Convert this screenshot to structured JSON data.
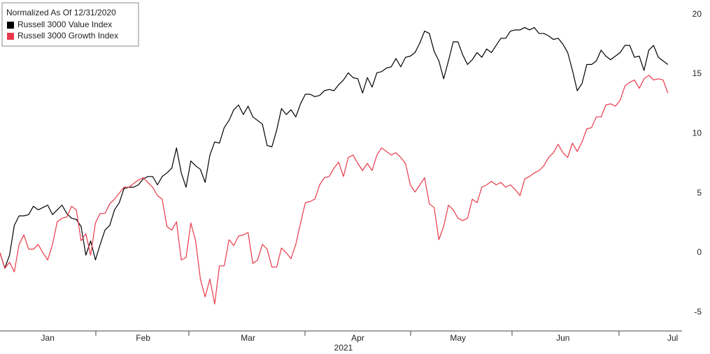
{
  "chart_data": {
    "type": "line",
    "legend_title": "Normalized As Of 12/31/2020",
    "x_label": "2021",
    "categories": [
      null,
      null,
      null,
      null,
      null,
      null,
      null,
      null,
      null,
      null,
      "Jan",
      null,
      null,
      null,
      null,
      null,
      null,
      null,
      null,
      null,
      null,
      null,
      null,
      null,
      null,
      null,
      null,
      null,
      null,
      null,
      "Feb",
      null,
      null,
      null,
      null,
      null,
      null,
      null,
      null,
      null,
      null,
      null,
      null,
      null,
      null,
      null,
      null,
      null,
      null,
      null,
      null,
      null,
      "Mar",
      null,
      null,
      null,
      null,
      null,
      null,
      null,
      null,
      null,
      null,
      null,
      null,
      null,
      null,
      null,
      null,
      null,
      null,
      null,
      null,
      null,
      null,
      "Apr",
      null,
      null,
      null,
      null,
      null,
      null,
      null,
      null,
      null,
      null,
      null,
      null,
      null,
      null,
      null,
      null,
      null,
      null,
      null,
      null,
      "May",
      null,
      null,
      null,
      null,
      null,
      null,
      null,
      null,
      null,
      null,
      null,
      null,
      null,
      null,
      null,
      null,
      null,
      null,
      null,
      null,
      null,
      "Jun",
      null,
      null,
      null,
      null,
      null,
      null,
      null,
      null,
      null,
      null,
      null,
      null,
      null,
      null,
      null,
      null,
      null,
      null,
      null,
      null,
      null,
      null,
      "Jul"
    ],
    "series": [
      {
        "name": "Russell 3000 Value Index",
        "color": "#000000",
        "values": [
          0,
          -1.3,
          -0.2,
          2.3,
          3.1,
          3.1,
          3.2,
          3.9,
          3.6,
          3.8,
          4.0,
          3.2,
          3.6,
          4.0,
          3.3,
          2.9,
          2.8,
          2.2,
          -0.2,
          1.0,
          -0.6,
          0.7,
          1.9,
          2.3,
          3.6,
          4.2,
          5.4,
          5.5,
          5.5,
          5.7,
          6.2,
          6.4,
          6.4,
          5.7,
          6.4,
          6.7,
          7.1,
          8.8,
          6.7,
          5.5,
          7.7,
          7.3,
          7.0,
          5.9,
          8.2,
          9.3,
          9.2,
          10.5,
          11.1,
          12.0,
          12.4,
          11.6,
          12.3,
          11.4,
          11.1,
          10.8,
          9.0,
          8.9,
          10.3,
          12.1,
          11.6,
          12.0,
          11.4,
          12.5,
          13.3,
          13.3,
          13.1,
          13.2,
          13.6,
          13.7,
          13.6,
          14.1,
          14.5,
          15.1,
          14.7,
          14.6,
          13.4,
          14.7,
          13.9,
          15.1,
          15.2,
          15.5,
          15.6,
          16.3,
          15.6,
          16.4,
          16.5,
          16.8,
          17.6,
          18.6,
          18.4,
          16.9,
          16.1,
          14.6,
          16.1,
          17.7,
          17.7,
          16.6,
          15.8,
          16.2,
          16.8,
          16.4,
          17.1,
          16.8,
          17.4,
          18.0,
          18.0,
          18.6,
          18.7,
          18.7,
          18.9,
          18.7,
          18.9,
          18.4,
          18.4,
          18.2,
          17.9,
          18.0,
          17.5,
          16.8,
          15.3,
          13.6,
          14.2,
          15.8,
          15.8,
          16.1,
          17.0,
          16.5,
          16.2,
          16.5,
          16.8,
          17.4,
          17.4,
          16.4,
          16.5,
          15.3,
          17.0,
          17.4,
          16.4,
          16.1,
          15.8,
          null
        ]
      },
      {
        "name": "Russell 3000 Growth Index",
        "color": "#e8394a",
        "values": [
          0,
          -1.3,
          -0.8,
          -1.6,
          0.7,
          1.5,
          0.3,
          0.3,
          0.7,
          0,
          -0.6,
          0.7,
          2.6,
          2.9,
          3.0,
          3.9,
          3.6,
          1.0,
          1.6,
          -0.2,
          2.5,
          3.3,
          3.3,
          4.1,
          4.5,
          5.0,
          5.5,
          5.5,
          5.8,
          6.1,
          6.3,
          5.9,
          5.5,
          4.8,
          4.5,
          2.2,
          1.9,
          2.6,
          -0.6,
          -0.4,
          2.5,
          1.0,
          -2.2,
          -3.7,
          -2.2,
          -4.3,
          -1.1,
          -1.1,
          1.1,
          0.6,
          1.4,
          1.5,
          1.7,
          -0.9,
          -0.6,
          0.7,
          0.3,
          -1.2,
          -1.2,
          0.4,
          0,
          -0.5,
          0.7,
          2.5,
          4.2,
          4.3,
          4.5,
          5.7,
          6.3,
          6.4,
          7.1,
          7.6,
          6.4,
          8.0,
          8.2,
          7.5,
          6.9,
          7.5,
          6.9,
          8.2,
          8.8,
          8.5,
          8.2,
          8.4,
          8.0,
          7.5,
          5.7,
          5.1,
          5.7,
          6.3,
          4.1,
          3.8,
          1.1,
          2.2,
          4.0,
          3.6,
          2.9,
          2.7,
          2.9,
          4.5,
          4.2,
          5.5,
          5.7,
          6.0,
          5.7,
          5.9,
          5.5,
          5.7,
          5.3,
          4.8,
          6.2,
          6.4,
          6.7,
          6.9,
          7.3,
          8.0,
          8.4,
          9.1,
          8.4,
          8.0,
          9.2,
          8.5,
          9.3,
          10.4,
          10.5,
          11.4,
          11.4,
          12.4,
          12.5,
          12.3,
          12.8,
          14.0,
          14.3,
          14.5,
          13.8,
          14.6,
          14.9,
          14.5,
          14.6,
          14.5,
          13.4,
          null
        ]
      }
    ],
    "ylim": [
      -6.56,
      21.21
    ],
    "yticks": [
      20,
      15,
      10,
      5,
      0,
      -5
    ],
    "grid": false,
    "legend": "upper left"
  }
}
